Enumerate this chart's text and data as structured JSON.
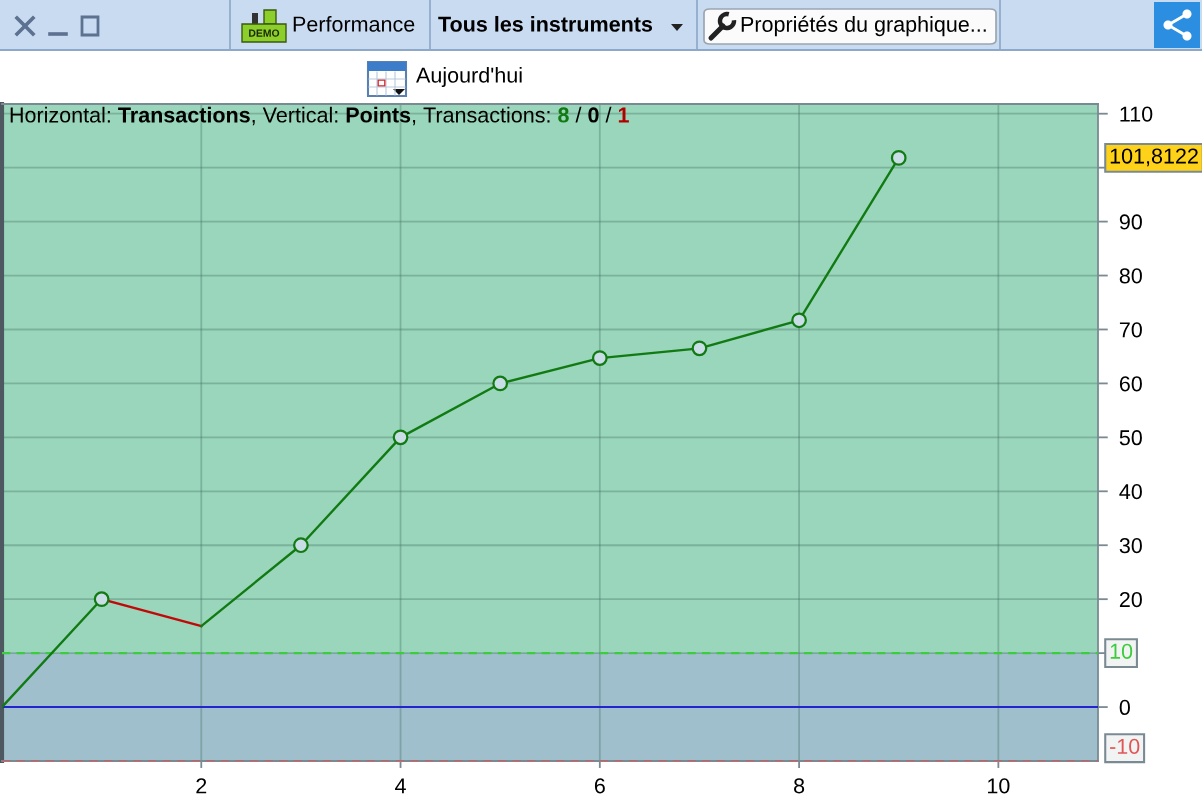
{
  "chart_data": {
    "type": "line",
    "title": "Horizontal: Transactions, Vertical: Points, Transactions: 8 / 0 / 1",
    "series": [
      {
        "type": "line",
        "color": "#127a12",
        "x": [
          0,
          1
        ],
        "values": [
          0,
          20
        ]
      },
      {
        "type": "line",
        "color": "#c00a0a",
        "x": [
          1,
          2
        ],
        "values": [
          20,
          15
        ]
      },
      {
        "type": "line",
        "color": "#127a12",
        "x": [
          2,
          3,
          4,
          5,
          6,
          7,
          8,
          9
        ],
        "values": [
          15,
          30,
          50,
          60,
          64.7,
          66.5,
          71.7,
          101.8122
        ]
      },
      {
        "type": "scatter",
        "color": "#127a12",
        "marker": "circle",
        "x": [
          1,
          3,
          4,
          5,
          6,
          7,
          8,
          9
        ],
        "values": [
          20,
          30,
          50,
          60,
          64.7,
          66.5,
          71.7,
          101.8122
        ]
      }
    ],
    "xlim": [
      0,
      11
    ],
    "xticks": [
      2,
      4,
      6,
      8,
      10
    ],
    "ylim": [
      -10,
      111.8
    ],
    "yticks": [
      0,
      {
        "value": 10,
        "label": null
      },
      20,
      30,
      40,
      50,
      60,
      70,
      80,
      90,
      {
        "value": 100,
        "label": null
      },
      110
    ],
    "grid": true,
    "ref_lines": [
      {
        "axis": "y",
        "value": 10,
        "label": "10",
        "color": "#3ccc3c",
        "line_style": "dashed"
      },
      {
        "axis": "y",
        "value": 0,
        "color": "#2323d0",
        "line_style": "solid"
      },
      {
        "axis": "y",
        "value": -10,
        "label": "-10",
        "color": "#e05555",
        "line_style": "dashed"
      }
    ],
    "bands": [
      {
        "axis": "y",
        "from": 10,
        "to": 111.8,
        "color": "#9ad6bb"
      },
      {
        "axis": "y",
        "from": -10,
        "to": 10,
        "color": "#a0bfcc"
      }
    ],
    "annotations": [
      "Performance",
      "Tous les instruments",
      "Propriétés du graphique...",
      "Aujourd'hui",
      "DEMO",
      "101,8122"
    ]
  }
}
